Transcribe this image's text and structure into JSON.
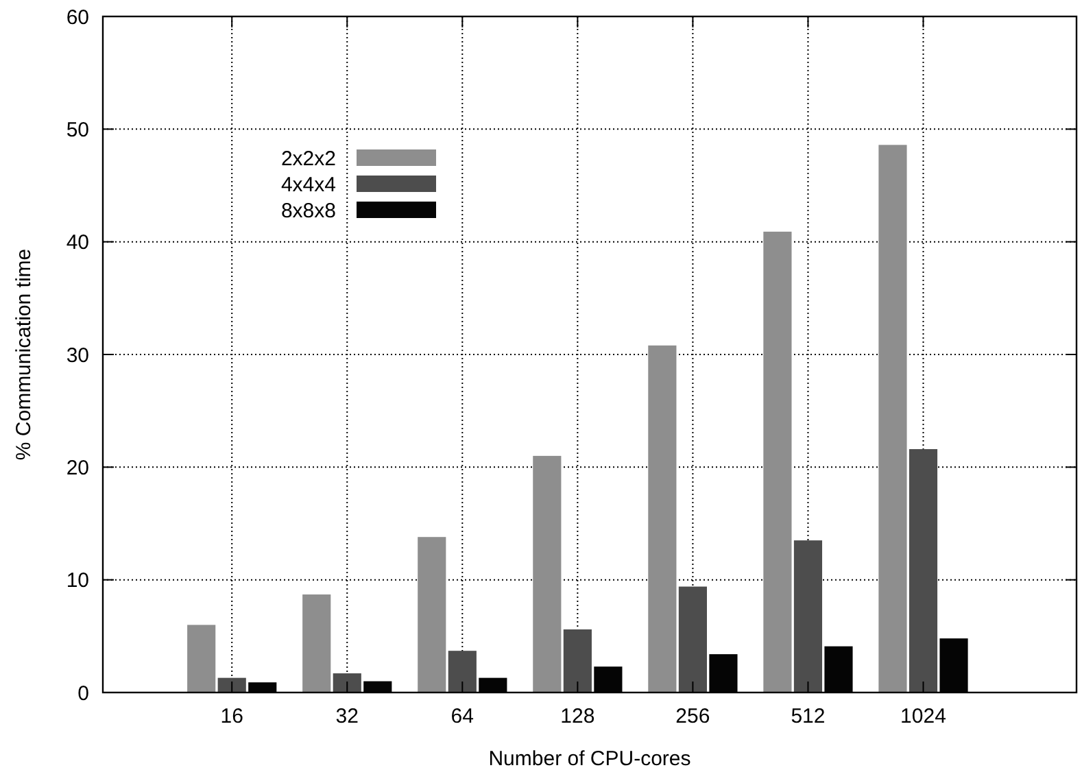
{
  "chart_data": {
    "type": "bar",
    "xlabel": "Number of CPU-cores",
    "ylabel": "% Communication time",
    "categories": [
      "16",
      "32",
      "64",
      "128",
      "256",
      "512",
      "1024"
    ],
    "series": [
      {
        "name": "2x2x2",
        "color": "#8e8e8e",
        "values": [
          6.0,
          8.7,
          13.8,
          21.0,
          30.8,
          40.9,
          48.6
        ]
      },
      {
        "name": "4x4x4",
        "color": "#4d4d4d",
        "values": [
          1.3,
          1.7,
          3.7,
          5.6,
          9.4,
          13.5,
          21.6
        ]
      },
      {
        "name": "8x8x8",
        "color": "#050505",
        "values": [
          0.9,
          1.0,
          1.3,
          2.3,
          3.4,
          4.1,
          4.8
        ]
      }
    ],
    "ylim": [
      0,
      60
    ],
    "yticks": [
      0,
      10,
      20,
      30,
      40,
      50,
      60
    ],
    "grid": true,
    "legend": "top left"
  }
}
